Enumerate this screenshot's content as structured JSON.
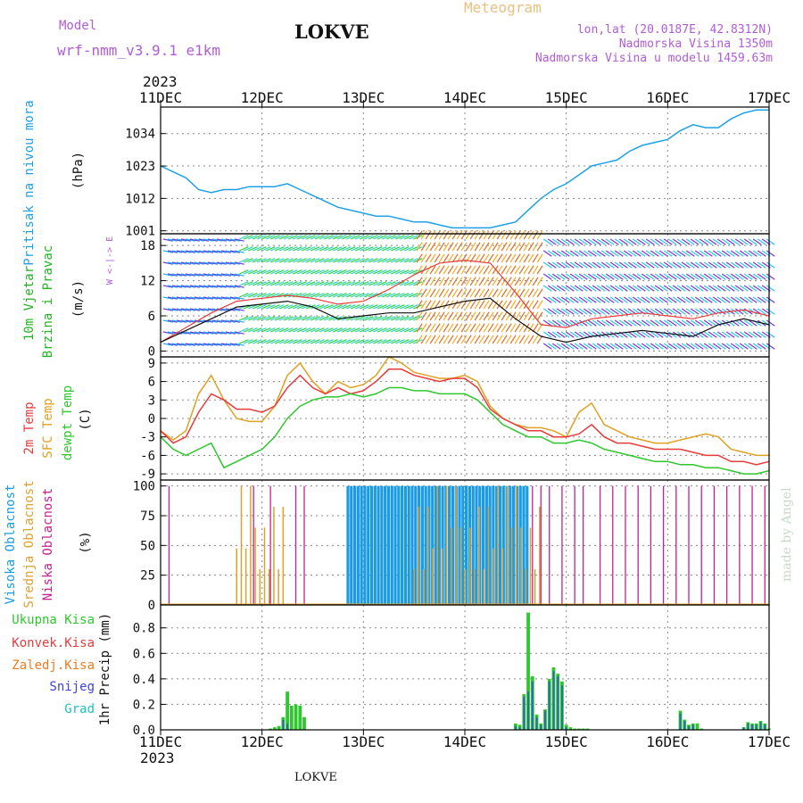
{
  "header": {
    "model_label": "Model",
    "model_name": "wrf-nmm_v3.9.1 e1km",
    "station": "LOKVE",
    "product": "Meteogram",
    "lonlat": "lon,lat (20.0187E, 42.8312N)",
    "altitude": "Nadmorska Visina 1350m",
    "model_altitude": "Nadmorska Visina u modelu 1459.63m",
    "year_top": "2023",
    "year_bottom": "2023",
    "footer_station": "LOKVE",
    "credit": "made by Angel"
  },
  "colors": {
    "pressure": "#1fa0e8",
    "wind_speed": "#111111",
    "wind_gust": "#e83b3b",
    "temp2m": "#e83b3b",
    "sfc_temp": "#e0a020",
    "dewpoint": "#2ec72e",
    "cloud_high": "#1a9be3",
    "cloud_mid": "#e0a030",
    "cloud_low": "#c8208e",
    "precip_total": "#2ec72e",
    "precip_conv": "#e83b3b",
    "precip_frozen": "#f07a20",
    "precip_snow": "#4040e0",
    "precip_graupel": "#20c0c0"
  },
  "chart_data": [
    {
      "type": "line",
      "x_categories": [
        "11DEC",
        "12DEC",
        "13DEC",
        "14DEC",
        "15DEC",
        "16DEC",
        "17DEC"
      ],
      "ylabel_side": "Pritisak na nivou mora",
      "ylabel": "(hPa)",
      "yticks": [
        1001,
        1012,
        1023,
        1034
      ],
      "ylim": [
        1000,
        1043
      ],
      "grid": true,
      "series": [
        {
          "x_hours": [
            0,
            3,
            6,
            9,
            12,
            15,
            18,
            21,
            24,
            27,
            30,
            33,
            36,
            39,
            42,
            45,
            48,
            51,
            54,
            57,
            60,
            63,
            66,
            69,
            72,
            75,
            78,
            81,
            84,
            87,
            90,
            93,
            96,
            99,
            102,
            105,
            108,
            111,
            114,
            117,
            120,
            123,
            126,
            129,
            132,
            135,
            138,
            141,
            144
          ],
          "values": [
            1023,
            1021,
            1019,
            1015,
            1014,
            1015,
            1015,
            1016,
            1016,
            1016,
            1017,
            1015,
            1013,
            1011,
            1009,
            1008,
            1007,
            1006,
            1006,
            1005,
            1004,
            1004,
            1003,
            1002,
            1002,
            1002,
            1002,
            1003,
            1004,
            1008,
            1012,
            1015,
            1017,
            1020,
            1023,
            1024,
            1025,
            1028,
            1030,
            1031,
            1032,
            1035,
            1037,
            1036,
            1036,
            1039,
            1041,
            1042,
            1042
          ]
        }
      ]
    },
    {
      "type": "line",
      "ylabel_side_1": "10m Vjetar",
      "ylabel_side_2": "Brzina i Pravac",
      "ylabel": "(m/s)",
      "compass_label": "W <-|-> E",
      "yticks": [
        0,
        6,
        12,
        18
      ],
      "ylim": [
        -1,
        20
      ],
      "grid": true,
      "series": [
        {
          "name": "speed",
          "x_hours": [
            0,
            6,
            12,
            18,
            24,
            30,
            36,
            42,
            48,
            54,
            60,
            66,
            72,
            78,
            84,
            90,
            96,
            102,
            108,
            114,
            120,
            126,
            132,
            138,
            144
          ],
          "values": [
            1.5,
            3.5,
            5.5,
            7.5,
            8.0,
            8.5,
            7.5,
            5.5,
            6.0,
            6.5,
            6.5,
            7.5,
            8.5,
            9.0,
            5.5,
            2.5,
            1.5,
            2.5,
            3.0,
            3.5,
            3.0,
            2.5,
            4.5,
            5.5,
            4.5
          ]
        },
        {
          "name": "gust",
          "x_hours": [
            0,
            6,
            12,
            18,
            24,
            30,
            36,
            42,
            48,
            54,
            60,
            66,
            72,
            78,
            84,
            90,
            96,
            102,
            108,
            114,
            120,
            126,
            132,
            138,
            144
          ],
          "values": [
            1.5,
            4.0,
            6.5,
            8.5,
            9.0,
            9.5,
            9.0,
            8.0,
            8.5,
            10.5,
            13.0,
            15.0,
            15.5,
            15.0,
            10.0,
            4.5,
            4.0,
            5.5,
            6.0,
            6.5,
            6.0,
            5.5,
            6.5,
            7.0,
            6.0
          ]
        }
      ],
      "wind_direction_bands": [
        {
          "from_hour": 0,
          "to_hour": 18,
          "description": "purple-blue barbs"
        },
        {
          "from_hour": 18,
          "to_hour": 60,
          "description": "green-cyan barbs"
        },
        {
          "from_hour": 60,
          "to_hour": 90,
          "description": "yellow-orange barbs"
        },
        {
          "from_hour": 90,
          "to_hour": 144,
          "description": "purple-cyan barbs"
        }
      ]
    },
    {
      "type": "line",
      "ylabel_side_1": "2m Temp",
      "ylabel_side_2": "SFC Temp",
      "ylabel_side_3": "dewpt Temp",
      "ylabel": "(C)",
      "yticks": [
        -9,
        -6,
        -3,
        0,
        3,
        6,
        9
      ],
      "ylim": [
        -10,
        10
      ],
      "grid": true,
      "series": [
        {
          "name": "2m Temp",
          "x_hours": [
            0,
            3,
            6,
            9,
            12,
            15,
            18,
            21,
            24,
            27,
            30,
            33,
            36,
            39,
            42,
            45,
            48,
            51,
            54,
            57,
            60,
            63,
            66,
            69,
            72,
            75,
            78,
            81,
            84,
            87,
            90,
            93,
            96,
            99,
            102,
            105,
            108,
            111,
            114,
            117,
            120,
            123,
            126,
            129,
            132,
            135,
            138,
            141,
            144
          ],
          "values": [
            -2,
            -4,
            -3,
            1,
            4,
            3,
            1.5,
            1.5,
            1,
            2,
            5,
            7,
            5,
            4,
            5,
            4,
            4.5,
            6,
            8,
            8,
            7,
            6.5,
            6,
            6.5,
            6.5,
            5,
            1.5,
            0,
            -1,
            -2,
            -2,
            -3,
            -3,
            -2.5,
            -1,
            -3,
            -4,
            -4,
            -4.5,
            -5,
            -5,
            -5,
            -5.5,
            -6,
            -6,
            -7,
            -7,
            -7.5,
            -7
          ]
        },
        {
          "name": "SFC Temp",
          "x_hours": [
            0,
            3,
            6,
            9,
            12,
            15,
            18,
            21,
            24,
            27,
            30,
            33,
            36,
            39,
            42,
            45,
            48,
            51,
            54,
            57,
            60,
            63,
            66,
            69,
            72,
            75,
            78,
            81,
            84,
            87,
            90,
            93,
            96,
            99,
            102,
            105,
            108,
            111,
            114,
            117,
            120,
            123,
            126,
            129,
            132,
            135,
            138,
            141,
            144
          ],
          "values": [
            -2,
            -3.5,
            -2,
            4,
            7,
            3,
            0,
            -0.5,
            -0.5,
            2,
            7,
            9,
            6,
            4,
            6,
            5,
            5.5,
            7,
            10,
            9,
            7.5,
            7,
            6.5,
            6.5,
            7,
            6,
            2,
            0,
            -1,
            -1.5,
            -1.5,
            -2,
            -3,
            1,
            2.5,
            -1,
            -2,
            -3,
            -3.5,
            -4,
            -4,
            -3.5,
            -3,
            -2.5,
            -3,
            -5,
            -5.5,
            -6,
            -6
          ]
        },
        {
          "name": "dewpt Temp",
          "x_hours": [
            0,
            3,
            6,
            9,
            12,
            15,
            18,
            21,
            24,
            27,
            30,
            33,
            36,
            39,
            42,
            45,
            48,
            51,
            54,
            57,
            60,
            63,
            66,
            69,
            72,
            75,
            78,
            81,
            84,
            87,
            90,
            93,
            96,
            99,
            102,
            105,
            108,
            111,
            114,
            117,
            120,
            123,
            126,
            129,
            132,
            135,
            138,
            141,
            144
          ],
          "values": [
            -3,
            -5,
            -6,
            -5,
            -4,
            -8,
            -7,
            -6,
            -5,
            -3,
            0,
            2,
            3,
            3.5,
            3.5,
            4,
            3.5,
            4,
            5,
            5,
            4.5,
            4.5,
            4,
            4,
            4,
            3,
            1,
            -1,
            -2,
            -3,
            -3,
            -4,
            -4,
            -3.5,
            -4,
            -5,
            -5.5,
            -6,
            -6.5,
            -7,
            -7,
            -7.5,
            -7.5,
            -8,
            -8,
            -8.5,
            -9,
            -9,
            -8.5
          ]
        }
      ]
    },
    {
      "type": "bar",
      "ylabel_side_1": "Visoka Oblacnost",
      "ylabel_side_2": "Srednja Oblacnost",
      "ylabel_side_3": "Niska Oblacnost",
      "ylabel": "(%)",
      "yticks": [
        0,
        25,
        50,
        75,
        100
      ],
      "ylim": [
        0,
        105
      ],
      "grid": true,
      "series": [
        {
          "name": "Visoka Oblacnost",
          "segments": [
            {
              "from_hour": 0,
              "to_hour": 44,
              "value": 0
            },
            {
              "from_hour": 44,
              "to_hour": 87,
              "value": 100
            },
            {
              "from_hour": 87,
              "to_hour": 144,
              "value": 0
            }
          ]
        },
        {
          "name": "Srednja Oblacnost",
          "segments": [
            {
              "from_hour": 18,
              "to_hour": 30,
              "value": 100
            },
            {
              "from_hour": 60,
              "to_hour": 90,
              "value": 100
            }
          ]
        },
        {
          "name": "Niska Oblacnost",
          "spikes_hours": [
            2,
            22,
            26,
            32,
            34,
            88,
            90,
            92,
            95,
            98,
            100,
            104,
            107,
            110,
            113,
            116,
            119,
            122,
            125,
            128,
            131,
            134,
            137,
            140,
            143
          ],
          "spike_value": 100
        }
      ]
    },
    {
      "type": "bar",
      "legend": [
        "Ukupna Kisa",
        "Konvek.Kisa",
        "Zaledj.Kisa",
        "Snijeg",
        "Grad"
      ],
      "ylabel": "1hr Precip (mm)",
      "yticks": [
        0.0,
        0.2,
        0.4,
        0.6,
        0.8
      ],
      "ylim": [
        0,
        0.98
      ],
      "grid": true,
      "series": [
        {
          "name": "Ukupna Kisa",
          "x_hours": [
            26,
            27,
            28,
            29,
            30,
            31,
            32,
            33,
            34,
            35,
            84,
            85,
            86,
            87,
            88,
            89,
            90,
            91,
            92,
            93,
            94,
            95,
            96,
            97,
            98,
            99,
            100,
            101,
            102,
            123,
            124,
            125,
            126,
            127,
            128,
            129,
            138,
            139,
            140,
            141,
            142,
            143,
            144
          ],
          "values": [
            0.01,
            0.02,
            0.03,
            0.1,
            0.3,
            0.19,
            0.2,
            0.19,
            0.1,
            0.0,
            0.05,
            0.04,
            0.28,
            0.92,
            0.42,
            0.12,
            0.05,
            0.16,
            0.4,
            0.49,
            0.44,
            0.38,
            0.04,
            0.02,
            0.01,
            0.01,
            0.01,
            0.01,
            0.0,
            0.15,
            0.08,
            0.04,
            0.05,
            0.05,
            0.01,
            0.0,
            0.02,
            0.06,
            0.05,
            0.05,
            0.07,
            0.05,
            0.01
          ]
        },
        {
          "name": "Snijeg",
          "x_hours": [
            29,
            30,
            84,
            85,
            86,
            87,
            88,
            89,
            90,
            91,
            92,
            93,
            94,
            95,
            96,
            123,
            124,
            125,
            126,
            138,
            139,
            140,
            141,
            142,
            143
          ],
          "values": [
            0.08,
            0.05,
            0.03,
            0.02,
            0.26,
            0.3,
            0.38,
            0.1,
            0.04,
            0.15,
            0.38,
            0.46,
            0.42,
            0.35,
            0.02,
            0.13,
            0.07,
            0.03,
            0.04,
            0.02,
            0.05,
            0.04,
            0.04,
            0.06,
            0.04
          ]
        }
      ]
    }
  ]
}
